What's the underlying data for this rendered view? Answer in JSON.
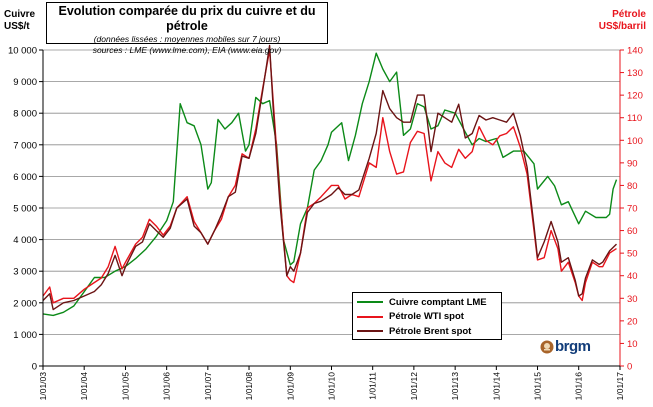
{
  "title": {
    "main": "Evolution comparée du prix du cuivre et du pétrole",
    "sub1": "(données lissées : moyennes mobiles sur 7 jours)",
    "sub2": "sources : LME (www.lme.com), EIA (www.eia.gov)"
  },
  "left_axis": {
    "line1": "Cuivre",
    "line2": "US$/t",
    "color": "#000000"
  },
  "right_axis": {
    "line1": "Pétrole",
    "line2": "US$/barril",
    "color": "#e8141c"
  },
  "logo": {
    "text": "brgm",
    "color": "#123d7a"
  },
  "chart_data": {
    "type": "line",
    "title": "Evolution comparée du prix du cuivre et du pétrole",
    "x_ticks": [
      "1/01/03",
      "1/01/04",
      "1/01/05",
      "1/01/06",
      "1/01/07",
      "1/01/08",
      "1/01/09",
      "1/01/10",
      "1/01/11",
      "1/01/12",
      "1/01/13",
      "1/01/14",
      "1/01/15",
      "1/01/16",
      "1/01/17"
    ],
    "xlim": [
      "2003-01-01",
      "2017-01-01"
    ],
    "y_left": {
      "label": "Cuivre US$/t",
      "ylim": [
        0,
        10000
      ],
      "ticks": [
        0,
        1000,
        2000,
        3000,
        4000,
        5000,
        6000,
        7000,
        8000,
        9000,
        10000
      ],
      "tick_labels": [
        "0",
        "1 000",
        "2 000",
        "3 000",
        "4 000",
        "5 000",
        "6 000",
        "7 000",
        "8 000",
        "9 000",
        "10 000"
      ]
    },
    "y_right": {
      "label": "Pétrole US$/barril",
      "ylim": [
        0,
        140
      ],
      "ticks": [
        0,
        10,
        20,
        30,
        40,
        50,
        60,
        70,
        80,
        90,
        100,
        110,
        120,
        130,
        140
      ],
      "tick_labels": [
        "0",
        "10",
        "20",
        "30",
        "40",
        "50",
        "60",
        "70",
        "80",
        "90",
        "100",
        "110",
        "120",
        "130",
        "140"
      ]
    },
    "grid": true,
    "legend_position": "bottom-center",
    "series": [
      {
        "name": "Cuivre comptant LME",
        "axis": "left",
        "color": "#0c8a18",
        "points": [
          [
            "2003-01-01",
            1650
          ],
          [
            "2003-04-01",
            1600
          ],
          [
            "2003-07-01",
            1700
          ],
          [
            "2003-10-01",
            1900
          ],
          [
            "2004-01-01",
            2350
          ],
          [
            "2004-04-01",
            2800
          ],
          [
            "2004-07-01",
            2800
          ],
          [
            "2004-10-01",
            3000
          ],
          [
            "2005-01-01",
            3150
          ],
          [
            "2005-04-01",
            3400
          ],
          [
            "2005-07-01",
            3700
          ],
          [
            "2005-10-01",
            4100
          ],
          [
            "2006-01-01",
            4600
          ],
          [
            "2006-03-01",
            5200
          ],
          [
            "2006-05-01",
            8300
          ],
          [
            "2006-07-01",
            7700
          ],
          [
            "2006-09-01",
            7600
          ],
          [
            "2006-11-01",
            7000
          ],
          [
            "2007-01-01",
            5600
          ],
          [
            "2007-02-01",
            5800
          ],
          [
            "2007-04-01",
            7800
          ],
          [
            "2007-06-01",
            7500
          ],
          [
            "2007-08-01",
            7700
          ],
          [
            "2007-10-01",
            8000
          ],
          [
            "2007-12-01",
            6800
          ],
          [
            "2008-01-01",
            7000
          ],
          [
            "2008-03-01",
            8500
          ],
          [
            "2008-05-01",
            8300
          ],
          [
            "2008-07-01",
            8400
          ],
          [
            "2008-09-01",
            7000
          ],
          [
            "2008-11-01",
            4000
          ],
          [
            "2009-01-01",
            3200
          ],
          [
            "2009-02-01",
            3300
          ],
          [
            "2009-04-01",
            4500
          ],
          [
            "2009-06-01",
            5000
          ],
          [
            "2009-08-01",
            6200
          ],
          [
            "2009-10-01",
            6500
          ],
          [
            "2009-12-01",
            7000
          ],
          [
            "2010-01-01",
            7400
          ],
          [
            "2010-04-01",
            7700
          ],
          [
            "2010-06-01",
            6500
          ],
          [
            "2010-08-01",
            7300
          ],
          [
            "2010-10-01",
            8300
          ],
          [
            "2010-12-01",
            9000
          ],
          [
            "2011-02-01",
            9900
          ],
          [
            "2011-04-01",
            9400
          ],
          [
            "2011-06-01",
            9000
          ],
          [
            "2011-08-01",
            9300
          ],
          [
            "2011-10-01",
            7300
          ],
          [
            "2011-12-01",
            7500
          ],
          [
            "2012-02-01",
            8300
          ],
          [
            "2012-04-01",
            8200
          ],
          [
            "2012-06-01",
            7500
          ],
          [
            "2012-08-01",
            7600
          ],
          [
            "2012-10-01",
            8100
          ],
          [
            "2013-01-01",
            8000
          ],
          [
            "2013-04-01",
            7400
          ],
          [
            "2013-06-01",
            7000
          ],
          [
            "2013-08-01",
            7200
          ],
          [
            "2013-10-01",
            7100
          ],
          [
            "2014-01-01",
            7200
          ],
          [
            "2014-03-01",
            6600
          ],
          [
            "2014-06-01",
            6800
          ],
          [
            "2014-09-01",
            6800
          ],
          [
            "2014-12-01",
            6400
          ],
          [
            "2015-01-01",
            5600
          ],
          [
            "2015-04-01",
            6000
          ],
          [
            "2015-06-01",
            5700
          ],
          [
            "2015-08-01",
            5100
          ],
          [
            "2015-10-01",
            5200
          ],
          [
            "2016-01-01",
            4500
          ],
          [
            "2016-03-01",
            4900
          ],
          [
            "2016-06-01",
            4700
          ],
          [
            "2016-09-01",
            4700
          ],
          [
            "2016-10-01",
            4800
          ],
          [
            "2016-11-01",
            5600
          ],
          [
            "2016-12-01",
            5900
          ]
        ]
      },
      {
        "name": "Pétrole WTI spot",
        "axis": "right",
        "color": "#e8141c",
        "points": [
          [
            "2003-01-01",
            31
          ],
          [
            "2003-03-01",
            35
          ],
          [
            "2003-04-01",
            28
          ],
          [
            "2003-07-01",
            30
          ],
          [
            "2003-10-01",
            30
          ],
          [
            "2004-01-01",
            34
          ],
          [
            "2004-04-01",
            37
          ],
          [
            "2004-06-01",
            39
          ],
          [
            "2004-08-01",
            44
          ],
          [
            "2004-10-01",
            53
          ],
          [
            "2004-12-01",
            43
          ],
          [
            "2005-01-01",
            46
          ],
          [
            "2005-04-01",
            54
          ],
          [
            "2005-06-01",
            57
          ],
          [
            "2005-08-01",
            65
          ],
          [
            "2005-10-01",
            62
          ],
          [
            "2005-12-01",
            58
          ],
          [
            "2006-02-01",
            62
          ],
          [
            "2006-04-01",
            70
          ],
          [
            "2006-07-01",
            75
          ],
          [
            "2006-09-01",
            64
          ],
          [
            "2006-11-01",
            59
          ],
          [
            "2007-01-01",
            54
          ],
          [
            "2007-03-01",
            60
          ],
          [
            "2007-05-01",
            65
          ],
          [
            "2007-07-01",
            75
          ],
          [
            "2007-09-01",
            80
          ],
          [
            "2007-11-01",
            94
          ],
          [
            "2008-01-01",
            92
          ],
          [
            "2008-03-01",
            105
          ],
          [
            "2008-05-01",
            123
          ],
          [
            "2008-07-01",
            140
          ],
          [
            "2008-08-01",
            118
          ],
          [
            "2008-10-01",
            75
          ],
          [
            "2008-12-01",
            40
          ],
          [
            "2009-01-01",
            38
          ],
          [
            "2009-02-01",
            37
          ],
          [
            "2009-04-01",
            50
          ],
          [
            "2009-06-01",
            70
          ],
          [
            "2009-08-01",
            72
          ],
          [
            "2009-10-01",
            75
          ],
          [
            "2010-01-01",
            80
          ],
          [
            "2010-03-01",
            80
          ],
          [
            "2010-05-01",
            74
          ],
          [
            "2010-07-01",
            76
          ],
          [
            "2010-09-01",
            75
          ],
          [
            "2010-12-01",
            90
          ],
          [
            "2011-02-01",
            88
          ],
          [
            "2011-04-01",
            110
          ],
          [
            "2011-06-01",
            95
          ],
          [
            "2011-08-01",
            85
          ],
          [
            "2011-10-01",
            86
          ],
          [
            "2011-12-01",
            99
          ],
          [
            "2012-02-01",
            104
          ],
          [
            "2012-04-01",
            103
          ],
          [
            "2012-06-01",
            82
          ],
          [
            "2012-08-01",
            95
          ],
          [
            "2012-10-01",
            90
          ],
          [
            "2012-12-01",
            88
          ],
          [
            "2013-02-01",
            96
          ],
          [
            "2013-04-01",
            92
          ],
          [
            "2013-06-01",
            95
          ],
          [
            "2013-08-01",
            106
          ],
          [
            "2013-10-01",
            100
          ],
          [
            "2013-12-01",
            98
          ],
          [
            "2014-02-01",
            102
          ],
          [
            "2014-04-01",
            103
          ],
          [
            "2014-06-01",
            106
          ],
          [
            "2014-08-01",
            97
          ],
          [
            "2014-10-01",
            85
          ],
          [
            "2014-12-01",
            60
          ],
          [
            "2015-01-01",
            47
          ],
          [
            "2015-03-01",
            48
          ],
          [
            "2015-05-01",
            60
          ],
          [
            "2015-07-01",
            52
          ],
          [
            "2015-08-01",
            42
          ],
          [
            "2015-10-01",
            46
          ],
          [
            "2015-12-01",
            37
          ],
          [
            "2016-01-01",
            31
          ],
          [
            "2016-02-01",
            29
          ],
          [
            "2016-03-01",
            37
          ],
          [
            "2016-05-01",
            46
          ],
          [
            "2016-07-01",
            44
          ],
          [
            "2016-08-01",
            44
          ],
          [
            "2016-10-01",
            50
          ],
          [
            "2016-12-01",
            52
          ]
        ]
      },
      {
        "name": "Pétrole Brent spot",
        "axis": "right",
        "color": "#6b1414",
        "points": [
          [
            "2003-01-01",
            29
          ],
          [
            "2003-03-01",
            32
          ],
          [
            "2003-04-01",
            25
          ],
          [
            "2003-07-01",
            28
          ],
          [
            "2003-10-01",
            29
          ],
          [
            "2004-01-01",
            31
          ],
          [
            "2004-04-01",
            33
          ],
          [
            "2004-06-01",
            36
          ],
          [
            "2004-08-01",
            41
          ],
          [
            "2004-10-01",
            49
          ],
          [
            "2004-12-01",
            40
          ],
          [
            "2005-01-01",
            44
          ],
          [
            "2005-04-01",
            53
          ],
          [
            "2005-06-01",
            55
          ],
          [
            "2005-08-01",
            63
          ],
          [
            "2005-10-01",
            60
          ],
          [
            "2005-12-01",
            57
          ],
          [
            "2006-02-01",
            61
          ],
          [
            "2006-04-01",
            70
          ],
          [
            "2006-07-01",
            74
          ],
          [
            "2006-09-01",
            62
          ],
          [
            "2006-11-01",
            59
          ],
          [
            "2007-01-01",
            54
          ],
          [
            "2007-03-01",
            60
          ],
          [
            "2007-05-01",
            67
          ],
          [
            "2007-07-01",
            75
          ],
          [
            "2007-09-01",
            77
          ],
          [
            "2007-11-01",
            93
          ],
          [
            "2008-01-01",
            92
          ],
          [
            "2008-03-01",
            103
          ],
          [
            "2008-05-01",
            122
          ],
          [
            "2008-07-01",
            142
          ],
          [
            "2008-08-01",
            115
          ],
          [
            "2008-10-01",
            72
          ],
          [
            "2008-12-01",
            40
          ],
          [
            "2009-01-01",
            44
          ],
          [
            "2009-02-01",
            42
          ],
          [
            "2009-04-01",
            50
          ],
          [
            "2009-06-01",
            68
          ],
          [
            "2009-08-01",
            72
          ],
          [
            "2009-10-01",
            73
          ],
          [
            "2010-01-01",
            76
          ],
          [
            "2010-03-01",
            79
          ],
          [
            "2010-05-01",
            76
          ],
          [
            "2010-07-01",
            76
          ],
          [
            "2010-09-01",
            78
          ],
          [
            "2010-12-01",
            92
          ],
          [
            "2011-02-01",
            103
          ],
          [
            "2011-04-01",
            122
          ],
          [
            "2011-06-01",
            114
          ],
          [
            "2011-08-01",
            110
          ],
          [
            "2011-10-01",
            108
          ],
          [
            "2011-12-01",
            108
          ],
          [
            "2012-02-01",
            120
          ],
          [
            "2012-04-01",
            120
          ],
          [
            "2012-06-01",
            95
          ],
          [
            "2012-08-01",
            112
          ],
          [
            "2012-10-01",
            110
          ],
          [
            "2012-12-01",
            108
          ],
          [
            "2013-02-01",
            116
          ],
          [
            "2013-04-01",
            101
          ],
          [
            "2013-06-01",
            103
          ],
          [
            "2013-08-01",
            111
          ],
          [
            "2013-10-01",
            109
          ],
          [
            "2013-12-01",
            110
          ],
          [
            "2014-02-01",
            109
          ],
          [
            "2014-04-01",
            108
          ],
          [
            "2014-06-01",
            112
          ],
          [
            "2014-08-01",
            102
          ],
          [
            "2014-10-01",
            88
          ],
          [
            "2014-12-01",
            62
          ],
          [
            "2015-01-01",
            48
          ],
          [
            "2015-03-01",
            55
          ],
          [
            "2015-05-01",
            64
          ],
          [
            "2015-07-01",
            55
          ],
          [
            "2015-08-01",
            46
          ],
          [
            "2015-10-01",
            48
          ],
          [
            "2015-12-01",
            38
          ],
          [
            "2016-01-01",
            31
          ],
          [
            "2016-02-01",
            32
          ],
          [
            "2016-03-01",
            39
          ],
          [
            "2016-05-01",
            47
          ],
          [
            "2016-07-01",
            45
          ],
          [
            "2016-08-01",
            46
          ],
          [
            "2016-10-01",
            51
          ],
          [
            "2016-12-01",
            54
          ]
        ]
      }
    ]
  }
}
